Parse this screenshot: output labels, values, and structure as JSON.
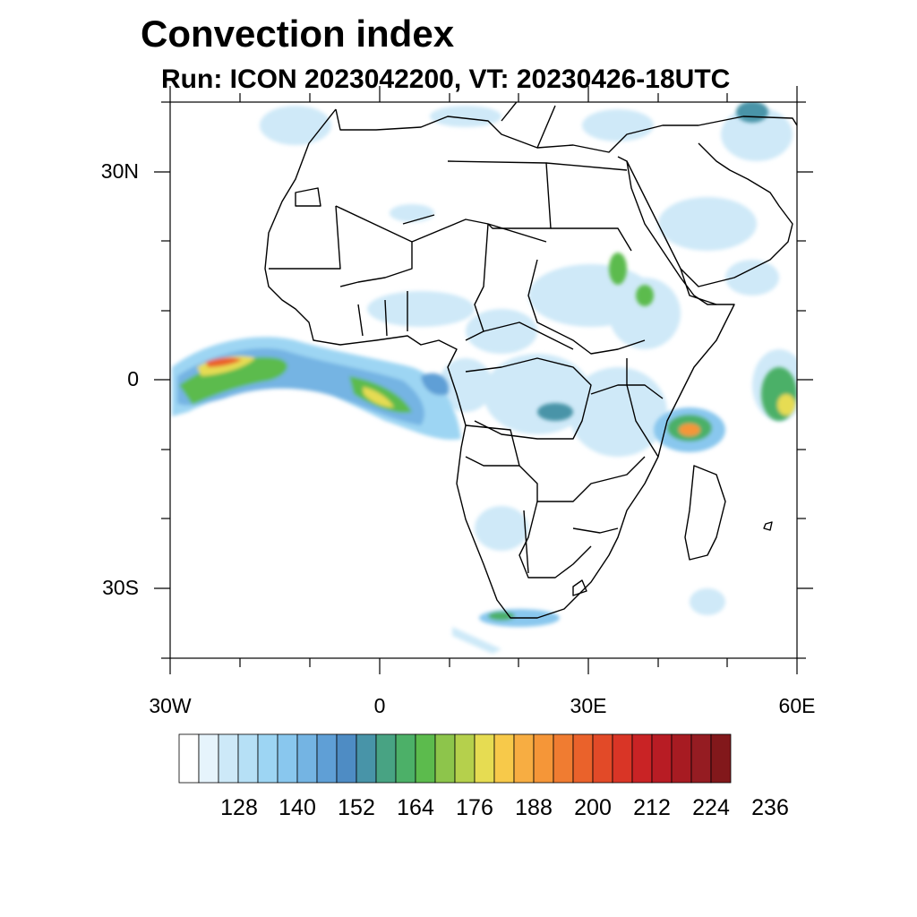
{
  "title": "Convection index",
  "subtitle": "Run: ICON 2023042200,  VT: 20230426-18UTC",
  "map": {
    "lon_range": [
      -30,
      60
    ],
    "lat_range": [
      -40,
      40
    ],
    "lat_ticks": [
      "30N",
      "0",
      "30S"
    ],
    "lon_ticks": [
      "30W",
      "0",
      "30E",
      "60E"
    ]
  },
  "colorbar": {
    "labels": [
      "128",
      "140",
      "152",
      "164",
      "176",
      "188",
      "200",
      "212",
      "224",
      "236"
    ],
    "colors": [
      "#ffffff",
      "#e6f4fc",
      "#cde9f8",
      "#b6e0f6",
      "#9dd5f3",
      "#89c7ee",
      "#74b4e3",
      "#5f9fd6",
      "#4e8cc4",
      "#4894a8",
      "#48a383",
      "#4cb068",
      "#5cbb4d",
      "#8dc54b",
      "#b5d04c",
      "#e6dc52",
      "#f7c94a",
      "#f7ad42",
      "#f59638",
      "#f07c31",
      "#ea622b",
      "#e24a28",
      "#d93526",
      "#c92325",
      "#b81c24",
      "#a71b22",
      "#951c22",
      "#82181b"
    ]
  }
}
